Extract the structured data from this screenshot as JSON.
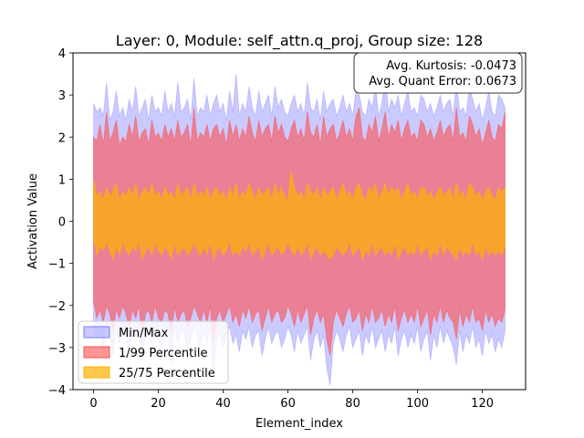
{
  "chart_data": {
    "type": "area",
    "title": "Layer: 0, Module: self_attn.q_proj,  Group size: 128",
    "xlabel": "Element_index",
    "ylabel": "Activation Value",
    "xlim": [
      -6.35,
      133.35
    ],
    "ylim": [
      -4,
      4
    ],
    "xticks": [
      0,
      20,
      40,
      60,
      80,
      100,
      120
    ],
    "yticks": [
      -4,
      -3,
      -2,
      -1,
      0,
      1,
      2,
      3,
      4
    ],
    "legend_position": "lower-left",
    "annotation_lines": [
      "Avg. Kurtosis: -0.0473",
      "Avg. Quant Error: 0.0673"
    ],
    "series": [
      {
        "name": "Min/Max",
        "color": "#7b7bff",
        "upper": [
          2.8,
          2.6,
          2.7,
          2.5,
          3.3,
          2.4,
          2.6,
          3.1,
          2.5,
          2.7,
          2.4,
          2.9,
          2.6,
          3.2,
          2.5,
          2.7,
          2.9,
          2.4,
          3.0,
          2.6,
          2.7,
          2.5,
          3.1,
          2.6,
          2.8,
          2.5,
          3.3,
          2.6,
          2.7,
          2.9,
          2.4,
          3.4,
          2.5,
          2.7,
          2.6,
          3.0,
          2.5,
          2.8,
          3.0,
          2.6,
          2.8,
          2.4,
          3.1,
          2.6,
          3.5,
          2.5,
          2.8,
          2.6,
          3.2,
          2.7,
          2.5,
          3.1,
          2.6,
          2.8,
          3.0,
          2.5,
          3.2,
          2.7,
          2.9,
          2.6,
          2.5,
          2.8,
          3.0,
          2.6,
          2.8,
          2.5,
          3.3,
          2.7,
          2.6,
          2.9,
          2.4,
          3.1,
          2.6,
          2.8,
          2.9,
          2.5,
          2.7,
          3.0,
          2.6,
          2.8,
          2.5,
          3.1,
          3.0,
          2.6,
          2.5,
          2.9,
          2.7,
          3.2,
          2.5,
          2.8,
          3.5,
          2.6,
          2.9,
          2.7,
          3.0,
          2.5,
          2.8,
          3.1,
          2.6,
          2.7,
          2.5,
          3.0,
          2.9,
          2.6,
          2.8,
          2.5,
          2.7,
          3.0,
          2.6,
          2.8,
          2.9,
          2.5,
          3.3,
          2.6,
          2.7,
          2.5,
          3.2,
          2.9,
          2.6,
          2.8,
          2.4,
          2.7,
          3.1,
          2.6,
          2.5,
          3.0,
          2.9,
          2.7
        ],
        "lower": [
          -2.4,
          -2.8,
          -2.6,
          -3.0,
          -2.5,
          -2.7,
          -3.2,
          -2.6,
          -2.9,
          -2.5,
          -2.7,
          -3.1,
          -2.6,
          -2.8,
          -2.5,
          -3.3,
          -2.7,
          -2.6,
          -2.9,
          -2.5,
          -2.8,
          -3.0,
          -2.6,
          -2.7,
          -3.4,
          -2.5,
          -2.9,
          -2.7,
          -2.6,
          -3.1,
          -2.8,
          -2.5,
          -2.7,
          -3.0,
          -2.6,
          -2.9,
          -2.5,
          -3.6,
          -2.8,
          -2.6,
          -3.0,
          -2.7,
          -2.5,
          -2.9,
          -2.7,
          -3.1,
          -2.6,
          -2.8,
          -2.5,
          -3.0,
          -2.7,
          -2.6,
          -3.2,
          -2.8,
          -2.5,
          -2.9,
          -2.7,
          -2.6,
          -3.0,
          -2.8,
          -2.5,
          -2.7,
          -3.1,
          -2.6,
          -2.9,
          -2.7,
          -2.5,
          -3.3,
          -2.8,
          -2.6,
          -3.0,
          -2.7,
          -3.5,
          -3.9,
          -2.9,
          -2.6,
          -2.8,
          -3.1,
          -2.7,
          -2.5,
          -3.0,
          -2.8,
          -2.6,
          -3.2,
          -2.7,
          -2.9,
          -2.5,
          -3.0,
          -2.8,
          -2.6,
          -3.1,
          -2.7,
          -2.9,
          -2.5,
          -3.2,
          -2.8,
          -2.6,
          -3.0,
          -2.7,
          -2.9,
          -2.5,
          -3.1,
          -2.8,
          -2.6,
          -3.3,
          -2.7,
          -3.0,
          -2.5,
          -2.9,
          -2.6,
          -2.8,
          -3.0,
          -3.4,
          -2.6,
          -3.1,
          -2.7,
          -2.9,
          -2.5,
          -3.0,
          -2.8,
          -3.2,
          -2.6,
          -2.9,
          -2.7,
          -3.1,
          -2.8,
          -3.0,
          -2.6
        ]
      },
      {
        "name": "1/99 Percentile",
        "color": "#ff4f4f",
        "upper": [
          2.0,
          1.9,
          2.3,
          1.8,
          2.6,
          1.9,
          2.1,
          2.4,
          1.8,
          2.0,
          1.9,
          2.3,
          2.0,
          2.5,
          1.9,
          2.1,
          2.2,
          1.8,
          2.4,
          2.0,
          2.1,
          1.9,
          2.3,
          2.0,
          2.2,
          1.9,
          2.4,
          2.0,
          2.1,
          2.3,
          1.8,
          2.7,
          1.9,
          2.1,
          2.0,
          2.3,
          1.9,
          2.2,
          2.3,
          2.0,
          2.2,
          1.8,
          2.4,
          2.0,
          2.3,
          1.9,
          2.2,
          2.0,
          2.5,
          2.1,
          1.9,
          2.4,
          2.0,
          2.2,
          2.3,
          1.9,
          2.5,
          2.1,
          2.3,
          2.0,
          1.9,
          2.2,
          2.4,
          2.0,
          2.2,
          1.9,
          2.6,
          2.1,
          2.0,
          2.3,
          1.8,
          2.5,
          2.0,
          2.2,
          2.3,
          1.9,
          2.1,
          2.4,
          2.0,
          2.2,
          1.9,
          2.5,
          2.7,
          2.0,
          1.9,
          2.3,
          2.1,
          2.5,
          1.9,
          2.2,
          2.6,
          2.0,
          2.3,
          2.1,
          2.4,
          1.9,
          2.2,
          2.4,
          2.0,
          2.1,
          1.9,
          2.4,
          2.3,
          2.0,
          2.2,
          1.9,
          2.1,
          2.4,
          2.0,
          2.2,
          2.3,
          1.9,
          2.7,
          2.0,
          2.1,
          1.9,
          2.5,
          2.3,
          2.0,
          2.2,
          1.8,
          2.1,
          2.4,
          2.0,
          1.9,
          2.3,
          2.2,
          2.6
        ],
        "lower": [
          -1.9,
          -2.3,
          -2.1,
          -2.4,
          -2.0,
          -2.2,
          -2.6,
          -2.1,
          -2.3,
          -2.0,
          -2.2,
          -2.5,
          -2.1,
          -2.3,
          -2.0,
          -2.7,
          -2.2,
          -2.1,
          -2.4,
          -2.0,
          -2.3,
          -2.4,
          -2.1,
          -2.2,
          -2.7,
          -2.0,
          -2.4,
          -2.2,
          -2.1,
          -2.5,
          -2.3,
          -2.0,
          -2.2,
          -2.4,
          -2.1,
          -2.4,
          -2.0,
          -2.9,
          -2.3,
          -2.1,
          -2.4,
          -2.2,
          -2.0,
          -2.4,
          -2.2,
          -2.5,
          -2.1,
          -2.3,
          -2.0,
          -2.4,
          -2.2,
          -2.1,
          -2.6,
          -2.3,
          -2.0,
          -2.4,
          -2.2,
          -2.1,
          -2.4,
          -2.3,
          -2.0,
          -2.2,
          -2.5,
          -2.1,
          -2.4,
          -2.2,
          -2.0,
          -2.7,
          -2.3,
          -2.1,
          -2.4,
          -2.2,
          -2.8,
          -3.2,
          -2.4,
          -2.1,
          -2.3,
          -2.5,
          -2.2,
          -2.0,
          -2.4,
          -2.3,
          -2.1,
          -2.6,
          -2.2,
          -2.4,
          -2.0,
          -2.4,
          -2.3,
          -2.1,
          -2.5,
          -2.2,
          -2.4,
          -2.0,
          -2.6,
          -2.3,
          -2.1,
          -2.4,
          -2.2,
          -2.4,
          -2.0,
          -2.5,
          -2.3,
          -2.1,
          -2.7,
          -2.2,
          -2.4,
          -2.0,
          -2.4,
          -2.1,
          -2.3,
          -2.4,
          -2.8,
          -2.1,
          -2.5,
          -2.2,
          -2.4,
          -2.0,
          -2.4,
          -2.3,
          -2.6,
          -2.1,
          -2.4,
          -2.2,
          -2.5,
          -2.3,
          -2.4,
          -2.1
        ]
      },
      {
        "name": "25/75 Percentile",
        "color": "#ffb000",
        "upper": [
          1.0,
          0.6,
          0.7,
          0.5,
          0.8,
          0.6,
          0.7,
          0.9,
          0.5,
          0.7,
          0.6,
          0.8,
          0.6,
          0.9,
          0.5,
          0.7,
          0.8,
          0.6,
          0.9,
          0.6,
          0.7,
          0.5,
          0.8,
          0.6,
          0.7,
          0.5,
          0.9,
          0.6,
          0.7,
          0.8,
          0.5,
          0.9,
          0.6,
          0.7,
          0.6,
          0.8,
          0.5,
          0.7,
          0.8,
          0.6,
          0.7,
          0.5,
          0.8,
          0.6,
          0.9,
          0.5,
          0.7,
          0.6,
          0.9,
          0.7,
          0.5,
          0.8,
          0.6,
          0.7,
          0.8,
          0.5,
          0.9,
          0.6,
          0.8,
          0.6,
          0.5,
          1.2,
          0.8,
          0.6,
          0.7,
          0.5,
          0.9,
          0.7,
          0.6,
          0.8,
          0.5,
          0.8,
          0.6,
          0.7,
          0.8,
          0.5,
          0.7,
          0.9,
          0.6,
          0.7,
          0.5,
          0.8,
          0.9,
          0.6,
          0.5,
          0.8,
          0.7,
          0.9,
          0.5,
          0.7,
          0.9,
          0.6,
          0.8,
          0.7,
          0.8,
          0.5,
          0.7,
          0.9,
          0.6,
          0.7,
          0.5,
          0.8,
          0.8,
          0.6,
          0.7,
          0.5,
          0.7,
          0.8,
          0.6,
          0.7,
          0.8,
          0.5,
          0.9,
          0.6,
          0.7,
          0.5,
          0.9,
          0.8,
          0.6,
          0.7,
          0.5,
          0.7,
          0.8,
          0.6,
          0.5,
          0.8,
          0.7,
          0.8
        ],
        "lower": [
          -0.4,
          -0.8,
          -0.6,
          -0.7,
          -0.5,
          -0.7,
          -0.9,
          -0.6,
          -0.8,
          -0.5,
          -0.7,
          -0.8,
          -0.6,
          -0.7,
          -0.5,
          -0.9,
          -0.7,
          -0.6,
          -0.8,
          -0.5,
          -0.7,
          -0.8,
          -0.6,
          -0.7,
          -0.9,
          -0.5,
          -0.8,
          -0.7,
          -0.6,
          -0.8,
          -0.7,
          -0.5,
          -0.7,
          -0.8,
          -0.6,
          -0.8,
          -0.5,
          -0.9,
          -0.7,
          -0.6,
          -0.8,
          -0.7,
          -0.5,
          -0.8,
          -0.7,
          -0.8,
          -0.6,
          -0.7,
          -0.5,
          -0.8,
          -0.7,
          -0.6,
          -0.9,
          -0.7,
          -0.5,
          -0.8,
          -0.7,
          -0.6,
          -0.8,
          -0.7,
          -0.5,
          -0.7,
          -0.8,
          -0.6,
          -0.8,
          -0.7,
          -0.5,
          -0.9,
          -0.7,
          -0.6,
          -0.8,
          -0.7,
          -0.8,
          -0.9,
          -0.8,
          -0.6,
          -0.7,
          -0.8,
          -0.7,
          -0.5,
          -0.8,
          -0.7,
          -0.6,
          -0.9,
          -0.7,
          -0.8,
          -0.5,
          -0.8,
          -0.7,
          -0.6,
          -0.8,
          -0.7,
          -0.8,
          -0.5,
          -0.9,
          -0.7,
          -0.6,
          -0.8,
          -0.7,
          -0.8,
          -0.5,
          -0.8,
          -0.7,
          -0.6,
          -0.9,
          -0.7,
          -0.8,
          -0.5,
          -0.8,
          -0.6,
          -0.7,
          -0.8,
          -0.9,
          -0.6,
          -0.8,
          -0.7,
          -0.8,
          -0.5,
          -0.8,
          -0.7,
          -0.9,
          -0.6,
          -0.8,
          -0.7,
          -0.8,
          -0.7,
          -0.8,
          -0.6
        ]
      }
    ]
  }
}
